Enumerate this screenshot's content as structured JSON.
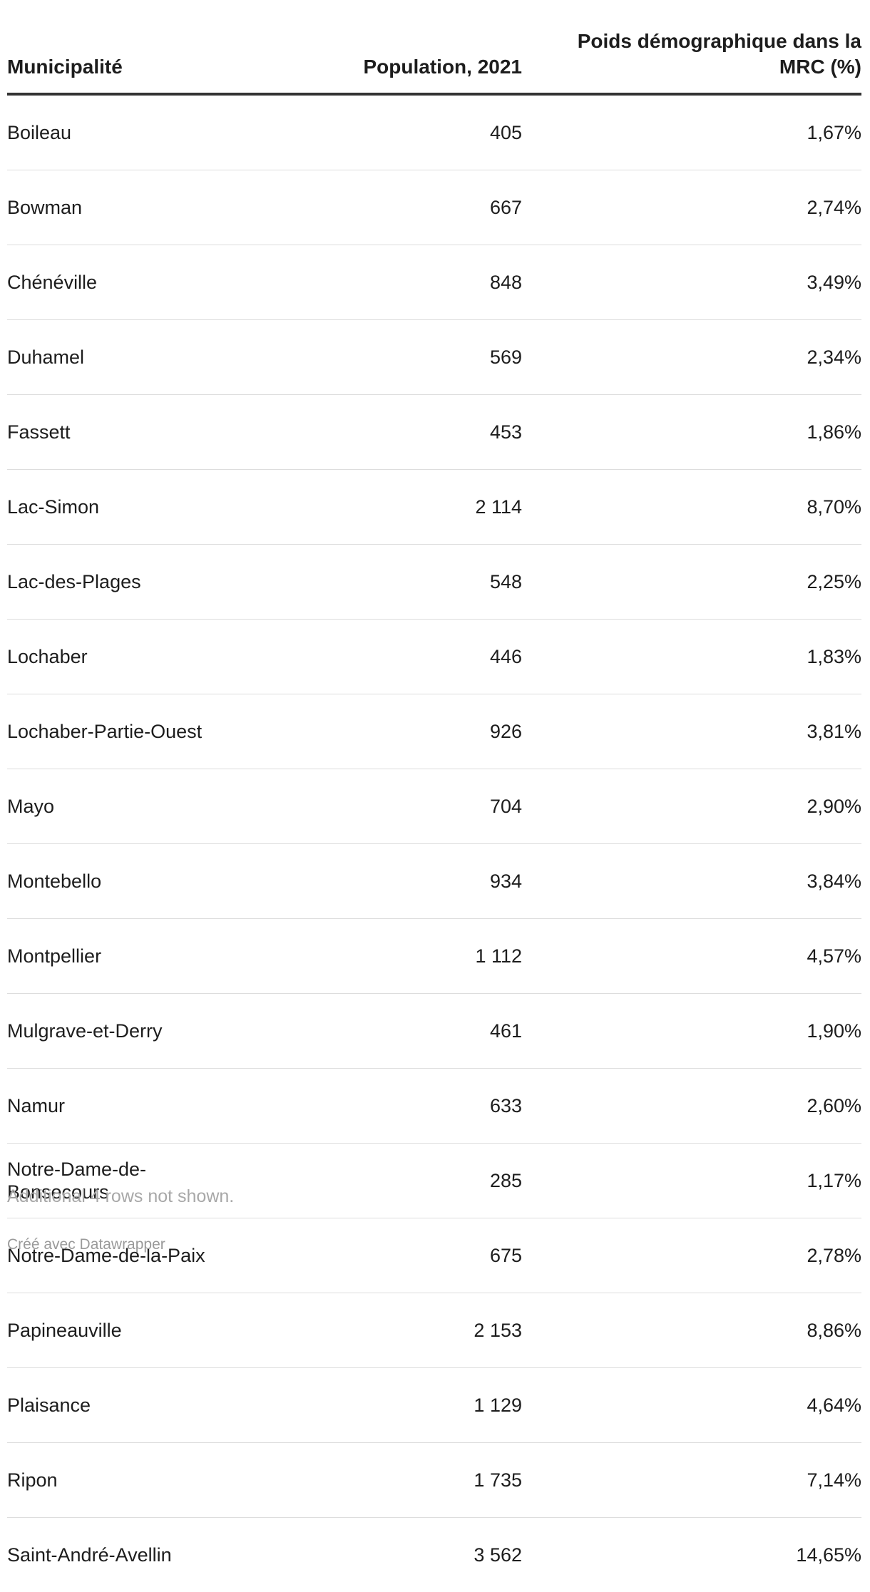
{
  "table": {
    "header": [
      "Municipalité",
      "Population, 2021",
      "Poids démographique dans la MRC (%)"
    ],
    "rows": [
      [
        "Boileau",
        "405",
        "1,67%"
      ],
      [
        "Bowman",
        "667",
        "2,74%"
      ],
      [
        "Chénéville",
        "848",
        "3,49%"
      ],
      [
        "Duhamel",
        "569",
        "2,34%"
      ],
      [
        "Fassett",
        "453",
        "1,86%"
      ],
      [
        "Lac-Simon",
        "2 114",
        "8,70%"
      ],
      [
        "Lac-des-Plages",
        "548",
        "2,25%"
      ],
      [
        "Lochaber",
        "446",
        "1,83%"
      ],
      [
        "Lochaber-Partie-Ouest",
        "926",
        "3,81%"
      ],
      [
        "Mayo",
        "704",
        "2,90%"
      ],
      [
        "Montebello",
        "934",
        "3,84%"
      ],
      [
        "Montpellier",
        "1 112",
        "4,57%"
      ],
      [
        "Mulgrave-et-Derry",
        "461",
        "1,90%"
      ],
      [
        "Namur",
        "633",
        "2,60%"
      ],
      [
        "Notre-Dame-de-Bonsecours",
        "285",
        "1,17%"
      ],
      [
        "Notre-Dame-de-la-Paix",
        "675",
        "2,78%"
      ],
      [
        "Papineauville",
        "2 153",
        "8,86%"
      ],
      [
        "Plaisance",
        "1 129",
        "4,64%"
      ],
      [
        "Ripon",
        "1 735",
        "7,14%"
      ],
      [
        "Saint-André-Avellin",
        "3 562",
        "14,65%"
      ]
    ]
  },
  "notes": "Additional 4 rows not shown.",
  "footer": "Créé avec Datawrapper"
}
